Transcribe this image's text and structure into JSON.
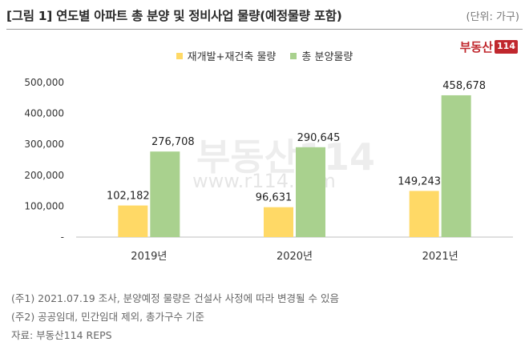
{
  "header": {
    "title": "[그림 1] 연도별 아파트 총 분양 및 정비사업 물량(예정물량 포함)",
    "unit": "(단위: 가구)"
  },
  "logo": {
    "text": "부동산",
    "number": "114"
  },
  "watermark": {
    "main": "부동산114",
    "url": "www.r114.com"
  },
  "chart_data": {
    "type": "bar",
    "categories": [
      "2019년",
      "2020년",
      "2021년"
    ],
    "series": [
      {
        "name": "재개발+재건축 물량",
        "values": [
          102182,
          96631,
          149243
        ],
        "color": "#FFD966",
        "labels": [
          "102,182",
          "96,631",
          "149,243"
        ]
      },
      {
        "name": "총 분양물량",
        "values": [
          276708,
          290645,
          458678
        ],
        "color": "#A9D18E",
        "labels": [
          "276,708",
          "290,645",
          "458,678"
        ]
      }
    ],
    "ylim": [
      0,
      500000
    ],
    "yticks": [
      0,
      100000,
      200000,
      300000,
      400000,
      500000
    ],
    "ytick_labels": [
      "-",
      "100,000",
      "200,000",
      "300,000",
      "400,000",
      "500,000"
    ],
    "legend": "top-center",
    "grid": false
  },
  "notes": [
    "(주1) 2021.07.19 조사, 분양예정 물량은 건설사 사정에 따라 변경될 수 있음",
    "(주2) 공공임대, 민간임대 제외, 총가구수 기준",
    "자료: 부동산114 REPS"
  ]
}
